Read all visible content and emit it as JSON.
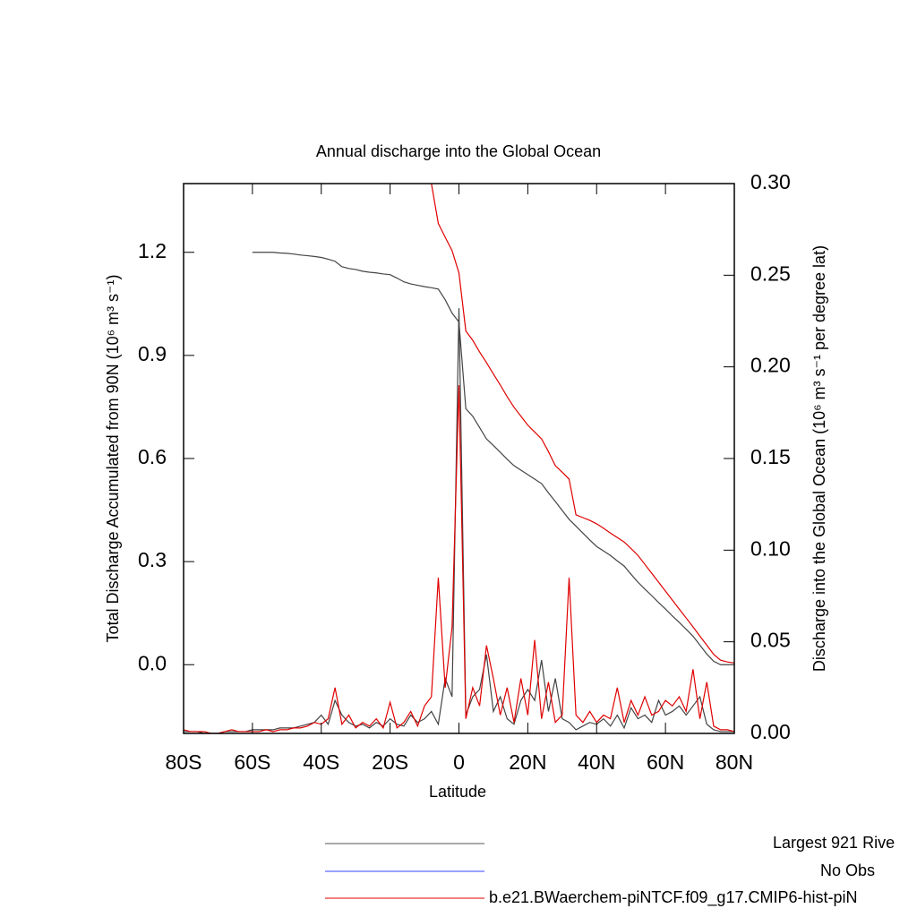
{
  "chart_data": {
    "type": "line",
    "title": "Annual discharge into the Global Ocean",
    "xlabel": "Latitude",
    "ylabel": "Total Discharge Accumulated from 90N (10⁶ m³ s⁻¹)",
    "y2label": "Discharge into the Global Ocean (10⁶ m³ s⁻¹ per degree lat)",
    "x": [
      -80,
      -78,
      -76,
      -74,
      -72,
      -70,
      -68,
      -66,
      -64,
      -62,
      -60,
      -58,
      -56,
      -54,
      -52,
      -50,
      -48,
      -46,
      -44,
      -42,
      -40,
      -38,
      -36,
      -34,
      -32,
      -30,
      -28,
      -26,
      -24,
      -22,
      -20,
      -18,
      -16,
      -14,
      -12,
      -10,
      -8,
      -6,
      -4,
      -2,
      0,
      2,
      4,
      6,
      8,
      10,
      12,
      14,
      16,
      18,
      20,
      22,
      24,
      26,
      28,
      30,
      32,
      34,
      36,
      38,
      40,
      42,
      44,
      46,
      48,
      50,
      52,
      54,
      56,
      58,
      60,
      62,
      64,
      66,
      68,
      70,
      72,
      74,
      76,
      78,
      80
    ],
    "xlim": [
      -80,
      80
    ],
    "xticks": [
      {
        "value": -80,
        "label": "80S"
      },
      {
        "value": -60,
        "label": "60S"
      },
      {
        "value": -40,
        "label": "40S"
      },
      {
        "value": -20,
        "label": "20S"
      },
      0,
      {
        "value": 20,
        "label": "20N"
      },
      {
        "value": 40,
        "label": "40N"
      },
      {
        "value": 60,
        "label": "60N"
      },
      {
        "value": 80,
        "label": "80N"
      }
    ],
    "ylim": [
      -0.2,
      1.4
    ],
    "yticks": [
      {
        "value": 0,
        "label": "0.0"
      },
      0.3,
      0.6,
      0.9,
      1.2
    ],
    "y2lim": [
      0,
      0.3
    ],
    "y2ticks": [
      {
        "value": 0,
        "label": "0.00"
      },
      {
        "value": 0.05,
        "label": "0.05"
      },
      {
        "value": 0.1,
        "label": "0.10"
      },
      {
        "value": 0.15,
        "label": "0.15"
      },
      {
        "value": 0.2,
        "label": "0.20"
      },
      {
        "value": 0.25,
        "label": "0.25"
      },
      {
        "value": 0.3,
        "label": "0.30"
      }
    ],
    "series": [
      {
        "color": "#444444",
        "axis": "y",
        "values": [
          null,
          null,
          null,
          null,
          null,
          null,
          null,
          null,
          null,
          null,
          1.2,
          1.2,
          1.2,
          1.2,
          1.198,
          1.197,
          1.195,
          1.192,
          1.19,
          1.188,
          1.185,
          1.18,
          1.174,
          1.158,
          1.153,
          1.15,
          1.145,
          1.142,
          1.14,
          1.137,
          1.135,
          1.125,
          1.114,
          1.108,
          1.104,
          1.1,
          1.097,
          1.093,
          1.062,
          1.023,
          0.997,
          0.745,
          0.723,
          0.69,
          0.657,
          0.638,
          0.618,
          0.598,
          0.579,
          0.566,
          0.553,
          0.54,
          0.527,
          0.5,
          0.475,
          0.449,
          0.423,
          0.403,
          0.383,
          0.363,
          0.344,
          0.331,
          0.318,
          0.302,
          0.287,
          0.263,
          0.24,
          0.22,
          0.201,
          0.181,
          0.162,
          0.142,
          0.123,
          0.103,
          0.083,
          0.057,
          0.031,
          0.01,
          0,
          0,
          0
        ]
      },
      {
        "color": "#e00000",
        "axis": "y",
        "values": [
          null,
          null,
          null,
          null,
          null,
          null,
          null,
          null,
          null,
          null,
          null,
          null,
          null,
          null,
          null,
          null,
          null,
          null,
          null,
          null,
          null,
          null,
          null,
          null,
          null,
          null,
          null,
          null,
          null,
          null,
          null,
          null,
          null,
          null,
          null,
          null,
          1.4,
          1.284,
          1.244,
          1.205,
          1.14,
          0.971,
          0.944,
          0.91,
          0.879,
          0.846,
          0.814,
          0.78,
          0.749,
          0.723,
          0.697,
          0.677,
          0.657,
          0.62,
          0.579,
          0.56,
          0.54,
          0.436,
          0.428,
          0.42,
          0.41,
          0.397,
          0.383,
          0.37,
          0.357,
          0.338,
          0.318,
          0.292,
          0.266,
          0.24,
          0.214,
          0.188,
          0.162,
          0.136,
          0.11,
          0.083,
          0.057,
          0.03,
          0.013,
          0.008,
          0.005
        ]
      },
      {
        "color": "#444444",
        "axis": "y2",
        "values": [
          0.001,
          0.001,
          0.001,
          0,
          0,
          0,
          0.001,
          0.001,
          0.001,
          0.001,
          0.002,
          0.002,
          0.002,
          0.002,
          0.003,
          0.003,
          0.003,
          0.004,
          0.005,
          0.006,
          0.01,
          0.005,
          0.018,
          0.01,
          0.006,
          0.004,
          0.005,
          0.003,
          0.006,
          0.004,
          0.008,
          0.005,
          0.004,
          0.01,
          0.006,
          0.008,
          0.012,
          0.005,
          0.03,
          0.02,
          0.232,
          0.01,
          0.02,
          0.024,
          0.043,
          0.012,
          0.02,
          0.008,
          0.005,
          0.018,
          0.024,
          0.018,
          0.04,
          0.012,
          0.03,
          0.008,
          0.006,
          0.002,
          0.004,
          0.006,
          0.005,
          0.008,
          0.004,
          0.01,
          0.003,
          0.014,
          0.008,
          0.01,
          0.006,
          0.018,
          0.01,
          0.012,
          0.015,
          0.01,
          0.015,
          0.02,
          0.005,
          0.002,
          0.001,
          0.001,
          0.001
        ]
      },
      {
        "color": "#e00000",
        "axis": "y2",
        "values": [
          0.002,
          0.001,
          0.001,
          0.001,
          0,
          0,
          0.001,
          0.002,
          0.001,
          0.001,
          0.001,
          0.001,
          0.002,
          0.001,
          0.002,
          0.002,
          0.003,
          0.003,
          0.004,
          0.006,
          0.005,
          0.008,
          0.025,
          0.005,
          0.01,
          0.003,
          0.006,
          0.004,
          0.008,
          0.003,
          0.017,
          0.003,
          0.006,
          0.012,
          0.004,
          0.015,
          0.02,
          0.085,
          0.025,
          0.058,
          0.19,
          0.008,
          0.025,
          0.015,
          0.048,
          0.03,
          0.01,
          0.025,
          0.006,
          0.03,
          0.01,
          0.051,
          0.008,
          0.028,
          0.006,
          0.01,
          0.085,
          0.01,
          0.006,
          0.012,
          0.006,
          0.01,
          0.008,
          0.025,
          0.006,
          0.018,
          0.01,
          0.02,
          0.01,
          0.012,
          0.018,
          0.015,
          0.02,
          0.012,
          0.035,
          0.008,
          0.028,
          0.004,
          0.002,
          0.002,
          0.001
        ]
      }
    ],
    "legend": [
      {
        "label": "Largest 921 Rive",
        "color": "#555555"
      },
      {
        "label": "No Obs",
        "color": "#3344ff"
      },
      {
        "label": "b.e21.BWaerchem-piNTCF.f09_g17.CMIP6-hist-piN",
        "color": "#e00000"
      }
    ]
  }
}
